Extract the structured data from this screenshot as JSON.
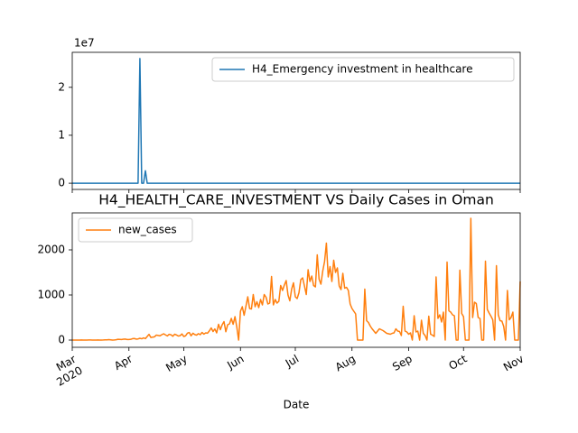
{
  "chart_data": [
    {
      "type": "line",
      "y_offset_text": "1e7",
      "series": [
        {
          "name": "H4_Emergency investment in healthcare",
          "color": "#1f77b4",
          "values": [
            0,
            0,
            0,
            0,
            0,
            0,
            0,
            0,
            0,
            0,
            0,
            0,
            0,
            0,
            0,
            0,
            0,
            0,
            0,
            0,
            0,
            0,
            0,
            0,
            0,
            0,
            0,
            0,
            0,
            0,
            0,
            0,
            0,
            0,
            0,
            0,
            0,
            26000000,
            0,
            0,
            2600000,
            0,
            0,
            0,
            0,
            0,
            0,
            0,
            0,
            0,
            0,
            0,
            0,
            0,
            0,
            0,
            0,
            0,
            0,
            0,
            0,
            0,
            0,
            0,
            0,
            0,
            0,
            0,
            0,
            0,
            0,
            0,
            0,
            0,
            0,
            0,
            0,
            0,
            0,
            0,
            0,
            0,
            0,
            0,
            0,
            0,
            0,
            0,
            0,
            0,
            0,
            0,
            0,
            0,
            0,
            0,
            0,
            0,
            0,
            0,
            0,
            0,
            0,
            0,
            0,
            0,
            0,
            0,
            0,
            0,
            0,
            0,
            0,
            0,
            0,
            0,
            0,
            0,
            0,
            0,
            0,
            0,
            0,
            0,
            0,
            0,
            0,
            0,
            0,
            0,
            0,
            0,
            0,
            0,
            0,
            0,
            0,
            0,
            0,
            0,
            0,
            0,
            0,
            0,
            0,
            0,
            0,
            0,
            0,
            0,
            0,
            0,
            0,
            0,
            0,
            0,
            0,
            0,
            0,
            0,
            0,
            0,
            0,
            0,
            0,
            0,
            0,
            0,
            0,
            0,
            0,
            0,
            0,
            0,
            0,
            0,
            0,
            0,
            0,
            0,
            0,
            0,
            0,
            0,
            0,
            0,
            0,
            0,
            0,
            0,
            0,
            0,
            0,
            0,
            0,
            0,
            0,
            0,
            0,
            0,
            0,
            0,
            0,
            0,
            0,
            0,
            0,
            0,
            0,
            0,
            0,
            0,
            0,
            0,
            0,
            0,
            0,
            0,
            0,
            0,
            0,
            0,
            0,
            0,
            0,
            0,
            0,
            0,
            0,
            0,
            0,
            0,
            0,
            0,
            0,
            0,
            0,
            0,
            0,
            0,
            0,
            0,
            0,
            0,
            0,
            0
          ]
        }
      ],
      "ylim": [
        -1300000,
        27300000
      ],
      "yticks": [
        {
          "value": 0,
          "label": "0"
        },
        {
          "value": 10000000,
          "label": "1"
        },
        {
          "value": 20000000,
          "label": "2"
        }
      ],
      "legend": "upper right",
      "grid": false
    },
    {
      "type": "line",
      "title": "H4_HEALTH_CARE_INVESTMENT VS Daily Cases in Oman",
      "x_label": "Date",
      "categories": [
        "Mar\n2020",
        null,
        null,
        null,
        null,
        null,
        null,
        null,
        null,
        null,
        null,
        null,
        null,
        null,
        null,
        null,
        null,
        null,
        null,
        null,
        null,
        null,
        null,
        null,
        null,
        null,
        null,
        null,
        null,
        null,
        null,
        "Apr",
        null,
        null,
        null,
        null,
        null,
        null,
        null,
        null,
        null,
        null,
        null,
        null,
        null,
        null,
        null,
        null,
        null,
        null,
        null,
        null,
        null,
        null,
        null,
        null,
        null,
        null,
        null,
        null,
        null,
        "May",
        null,
        null,
        null,
        null,
        null,
        null,
        null,
        null,
        null,
        null,
        null,
        null,
        null,
        null,
        null,
        null,
        null,
        null,
        null,
        null,
        null,
        null,
        null,
        null,
        null,
        null,
        null,
        null,
        null,
        null,
        "Jun",
        null,
        null,
        null,
        null,
        null,
        null,
        null,
        null,
        null,
        null,
        null,
        null,
        null,
        null,
        null,
        null,
        null,
        null,
        null,
        null,
        null,
        null,
        null,
        null,
        null,
        null,
        null,
        null,
        null,
        "Jul",
        null,
        null,
        null,
        null,
        null,
        null,
        null,
        null,
        null,
        null,
        null,
        null,
        null,
        null,
        null,
        null,
        null,
        null,
        null,
        null,
        null,
        null,
        null,
        null,
        null,
        null,
        null,
        null,
        null,
        null,
        "Aug",
        null,
        null,
        null,
        null,
        null,
        null,
        null,
        null,
        null,
        null,
        null,
        null,
        null,
        null,
        null,
        null,
        null,
        null,
        null,
        null,
        null,
        null,
        null,
        null,
        null,
        null,
        null,
        null,
        null,
        null,
        "Sep",
        null,
        null,
        null,
        null,
        null,
        null,
        null,
        null,
        null,
        null,
        null,
        null,
        null,
        null,
        null,
        null,
        null,
        null,
        null,
        null,
        null,
        null,
        null,
        null,
        null,
        null,
        null,
        null,
        null,
        "Oct",
        null,
        null,
        null,
        null,
        null,
        null,
        null,
        null,
        null,
        null,
        null,
        null,
        null,
        null,
        null,
        null,
        null,
        null,
        null,
        null,
        null,
        null,
        null,
        null,
        null,
        null,
        null,
        null,
        null,
        null,
        "Nov"
      ],
      "series": [
        {
          "name": "new_cases",
          "color": "#ff7f0e",
          "values": [
            0,
            0,
            1,
            0,
            0,
            3,
            0,
            0,
            0,
            2,
            2,
            0,
            1,
            0,
            2,
            0,
            0,
            2,
            5,
            4,
            9,
            6,
            0,
            3,
            7,
            18,
            15,
            12,
            20,
            22,
            13,
            13,
            17,
            32,
            35,
            21,
            26,
            40,
            29,
            48,
            33,
            79,
            127,
            57,
            66,
            73,
            111,
            103,
            95,
            120,
            140,
            115,
            92,
            128,
            118,
            85,
            130,
            114,
            90,
            98,
            136,
            80,
            95,
            154,
            168,
            96,
            152,
            123,
            110,
            143,
            120,
            170,
            132,
            159,
            153,
            205,
            270,
            190,
            246,
            160,
            350,
            230,
            340,
            410,
            186,
            340,
            360,
            480,
            350,
            520,
            290,
            0,
            640,
            740,
            550,
            750,
            960,
            700,
            690,
            1010,
            740,
            850,
            720,
            900,
            780,
            1010,
            950,
            800,
            820,
            1410,
            780,
            900,
            820,
            860,
            1210,
            1100,
            1220,
            1320,
            1000,
            870,
            1130,
            1270,
            960,
            920,
            1050,
            1340,
            1380,
            1200,
            1010,
            1560,
            1300,
            1420,
            1210,
            1180,
            1890,
            1350,
            1240,
            1530,
            1740,
            2150,
            1400,
            1630,
            1300,
            1770,
            1500,
            1600,
            1200,
            1120,
            1480,
            1150,
            1170,
            1100,
            800,
            700,
            640,
            580,
            0,
            0,
            0,
            0,
            1130,
            430,
            390,
            310,
            250,
            200,
            150,
            200,
            250,
            230,
            210,
            180,
            150,
            140,
            130,
            150,
            160,
            250,
            200,
            190,
            100,
            750,
            200,
            180,
            130,
            160,
            0,
            540,
            180,
            200,
            0,
            440,
            150,
            100,
            0,
            530,
            130,
            110,
            80,
            1400,
            480,
            560,
            400,
            620,
            0,
            1730,
            650,
            620,
            560,
            540,
            0,
            0,
            1550,
            590,
            520,
            0,
            0,
            0,
            2700,
            500,
            840,
            810,
            500,
            480,
            0,
            0,
            1750,
            680,
            600,
            530,
            450,
            0,
            1650,
            560,
            430,
            420,
            300,
            0,
            1100,
            450,
            500,
            620,
            0,
            0,
            0,
            1300
          ]
        }
      ],
      "ylim": [
        -160,
        2820
      ],
      "yticks": [
        0,
        1000,
        2000
      ],
      "legend": "upper left",
      "grid": false
    }
  ]
}
